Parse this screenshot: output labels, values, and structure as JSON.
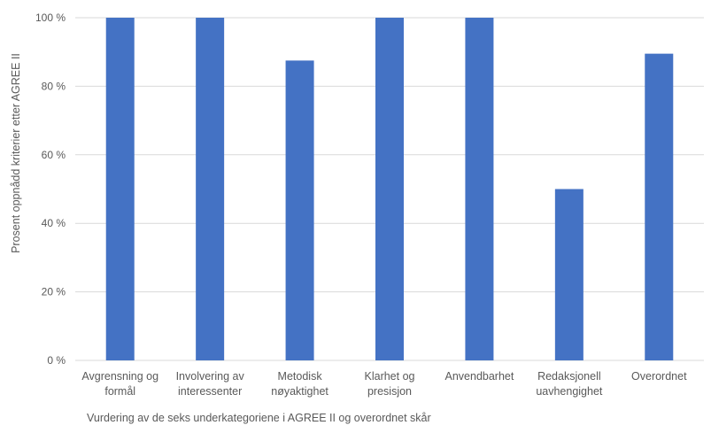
{
  "chart_data": {
    "type": "bar",
    "categories": [
      [
        "Avgrensning og",
        "formål"
      ],
      [
        "Involvering av",
        "interessenter"
      ],
      [
        "Metodisk",
        "nøyaktighet"
      ],
      [
        "Klarhet og",
        "presisjon"
      ],
      [
        "Anvendbarhet"
      ],
      [
        "Redaksjonell",
        "uavhengighet"
      ],
      [
        "Overordnet"
      ]
    ],
    "values": [
      100,
      100,
      87.5,
      100,
      100,
      50,
      89.5
    ],
    "ylim": [
      0,
      100
    ],
    "yticks": [
      0,
      20,
      40,
      60,
      80,
      100
    ],
    "ytick_labels": [
      "0 %",
      "20 %",
      "40 %",
      "60 %",
      "80 %",
      "100 %"
    ],
    "ylabel": "Prosent oppnådd kriterier etter  AGREE  II",
    "xlabel": "Vurdering av de seks underkategoriene  i AGREE  II og overordnet skår",
    "grid": true,
    "bar_color": "#4472C4",
    "grid_color": "#d9d9d9"
  }
}
